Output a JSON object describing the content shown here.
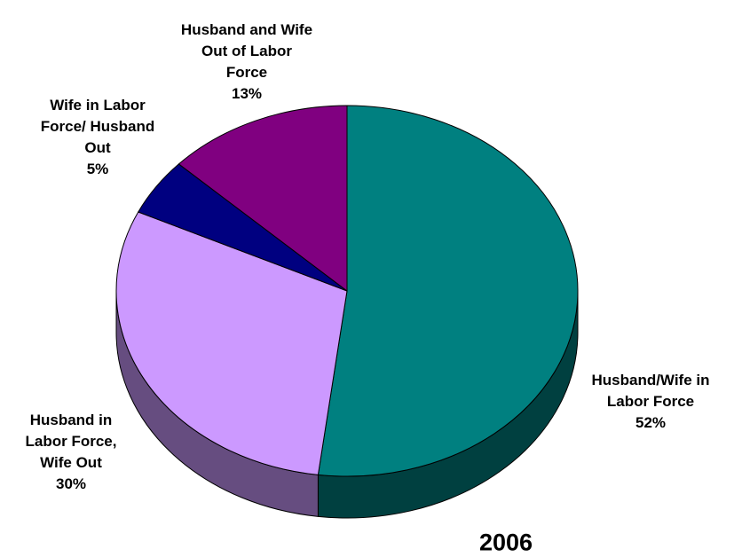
{
  "chart_data": {
    "type": "pie",
    "title": "2006",
    "categories": [
      "Husband/Wife in Labor Force",
      "Husband in Labor Force, Wife Out",
      "Wife in Labor Force/ Husband Out",
      "Husband and Wife Out of Labor Force"
    ],
    "values": [
      52,
      30,
      5,
      13
    ],
    "value_labels": [
      "52%",
      "30%",
      "5%",
      "13%"
    ],
    "colors": [
      "#008080",
      "#cc99ff",
      "#000080",
      "#800080"
    ]
  }
}
